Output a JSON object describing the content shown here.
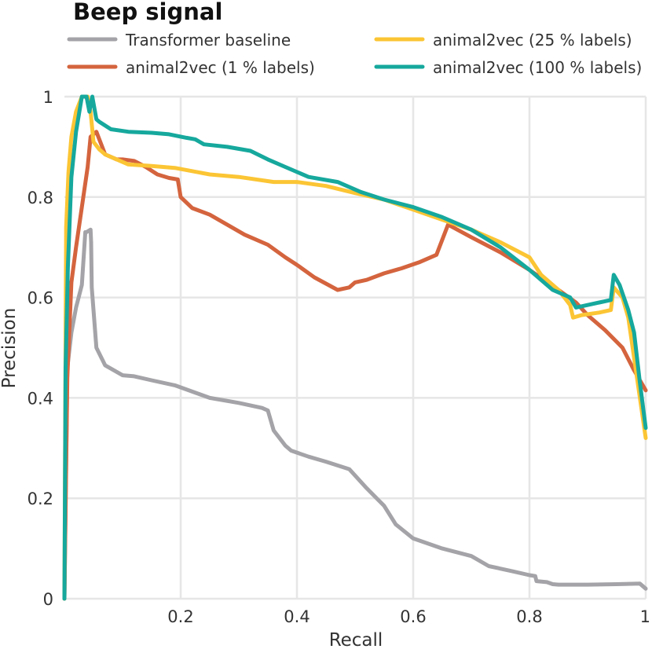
{
  "chart_data": {
    "type": "line",
    "title": "Beep signal",
    "xlabel": "Recall",
    "ylabel": "Precision",
    "xlim": [
      0,
      1
    ],
    "ylim": [
      0,
      1
    ],
    "xticks": [
      0.2,
      0.4,
      0.6,
      0.8,
      1
    ],
    "yticks": [
      0,
      0.2,
      0.4,
      0.6,
      0.8,
      1
    ],
    "xtick_labels": [
      "0.2",
      "0.4",
      "0.6",
      "0.8",
      "1"
    ],
    "ytick_labels": [
      "0",
      "0.2",
      "0.4",
      "0.6",
      "0.8",
      "1"
    ],
    "grid": true,
    "legend_position": "top",
    "series": [
      {
        "name": "Transformer baseline",
        "color": "#a4a4a8",
        "x": [
          0.0,
          0.005,
          0.012,
          0.02,
          0.03,
          0.036,
          0.038,
          0.045,
          0.046,
          0.047,
          0.055,
          0.07,
          0.1,
          0.12,
          0.15,
          0.19,
          0.25,
          0.3,
          0.34,
          0.35,
          0.36,
          0.38,
          0.39,
          0.42,
          0.45,
          0.49,
          0.52,
          0.55,
          0.57,
          0.6,
          0.65,
          0.7,
          0.73,
          0.77,
          0.8,
          0.81,
          0.812,
          0.83,
          0.84,
          0.85,
          0.9,
          0.95,
          0.99,
          1.0
        ],
        "y": [
          0.0,
          0.46,
          0.53,
          0.58,
          0.625,
          0.73,
          0.73,
          0.735,
          0.71,
          0.62,
          0.5,
          0.465,
          0.445,
          0.443,
          0.435,
          0.425,
          0.4,
          0.39,
          0.38,
          0.375,
          0.335,
          0.305,
          0.295,
          0.283,
          0.273,
          0.258,
          0.22,
          0.185,
          0.148,
          0.12,
          0.1,
          0.085,
          0.065,
          0.055,
          0.047,
          0.045,
          0.035,
          0.033,
          0.029,
          0.028,
          0.028,
          0.029,
          0.03,
          0.02
        ]
      },
      {
        "name": "animal2vec (1 % labels)",
        "color": "#d4643e",
        "x": [
          0.0,
          0.005,
          0.012,
          0.02,
          0.03,
          0.04,
          0.045,
          0.055,
          0.065,
          0.07,
          0.09,
          0.1,
          0.12,
          0.14,
          0.16,
          0.18,
          0.195,
          0.2,
          0.22,
          0.25,
          0.28,
          0.31,
          0.35,
          0.38,
          0.4,
          0.43,
          0.47,
          0.49,
          0.5,
          0.52,
          0.55,
          0.58,
          0.61,
          0.64,
          0.66,
          0.7,
          0.75,
          0.8,
          0.85,
          0.88,
          0.9,
          0.93,
          0.96,
          0.98,
          1.0
        ],
        "y": [
          0.0,
          0.44,
          0.63,
          0.7,
          0.78,
          0.86,
          0.92,
          0.93,
          0.9,
          0.885,
          0.875,
          0.875,
          0.872,
          0.86,
          0.845,
          0.838,
          0.835,
          0.8,
          0.778,
          0.765,
          0.745,
          0.725,
          0.705,
          0.68,
          0.665,
          0.64,
          0.615,
          0.62,
          0.63,
          0.635,
          0.648,
          0.658,
          0.67,
          0.685,
          0.745,
          0.72,
          0.69,
          0.655,
          0.615,
          0.59,
          0.565,
          0.535,
          0.5,
          0.455,
          0.415
        ]
      },
      {
        "name": "animal2vec (25 % labels)",
        "color": "#fbc534",
        "x": [
          0.0,
          0.003,
          0.007,
          0.012,
          0.02,
          0.03,
          0.04,
          0.045,
          0.05,
          0.06,
          0.07,
          0.09,
          0.11,
          0.15,
          0.19,
          0.25,
          0.3,
          0.36,
          0.4,
          0.45,
          0.5,
          0.55,
          0.6,
          0.65,
          0.7,
          0.75,
          0.8,
          0.82,
          0.85,
          0.87,
          0.875,
          0.89,
          0.92,
          0.94,
          0.945,
          0.96,
          0.97,
          0.98,
          0.99,
          1.0
        ],
        "y": [
          0.0,
          0.74,
          0.85,
          0.92,
          0.97,
          1.0,
          1.0,
          0.97,
          0.91,
          0.895,
          0.885,
          0.875,
          0.865,
          0.862,
          0.858,
          0.845,
          0.84,
          0.83,
          0.83,
          0.822,
          0.808,
          0.795,
          0.775,
          0.755,
          0.735,
          0.71,
          0.68,
          0.645,
          0.615,
          0.585,
          0.56,
          0.565,
          0.57,
          0.575,
          0.62,
          0.6,
          0.56,
          0.48,
          0.4,
          0.32
        ]
      },
      {
        "name": "animal2vec (100 % labels)",
        "color": "#16a89d",
        "x": [
          0.0,
          0.002,
          0.006,
          0.012,
          0.02,
          0.03,
          0.038,
          0.043,
          0.048,
          0.055,
          0.06,
          0.08,
          0.11,
          0.15,
          0.18,
          0.21,
          0.225,
          0.24,
          0.28,
          0.32,
          0.35,
          0.38,
          0.42,
          0.47,
          0.51,
          0.55,
          0.6,
          0.65,
          0.7,
          0.75,
          0.8,
          0.84,
          0.87,
          0.88,
          0.9,
          0.92,
          0.94,
          0.945,
          0.955,
          0.97,
          0.98,
          0.99,
          1.0
        ],
        "y": [
          0.0,
          0.46,
          0.66,
          0.84,
          0.93,
          1.0,
          1.0,
          0.97,
          1.0,
          0.955,
          0.95,
          0.935,
          0.93,
          0.928,
          0.925,
          0.918,
          0.915,
          0.905,
          0.9,
          0.892,
          0.875,
          0.86,
          0.84,
          0.83,
          0.81,
          0.795,
          0.78,
          0.76,
          0.735,
          0.7,
          0.655,
          0.615,
          0.6,
          0.58,
          0.585,
          0.59,
          0.595,
          0.645,
          0.625,
          0.575,
          0.53,
          0.43,
          0.34
        ]
      }
    ]
  }
}
